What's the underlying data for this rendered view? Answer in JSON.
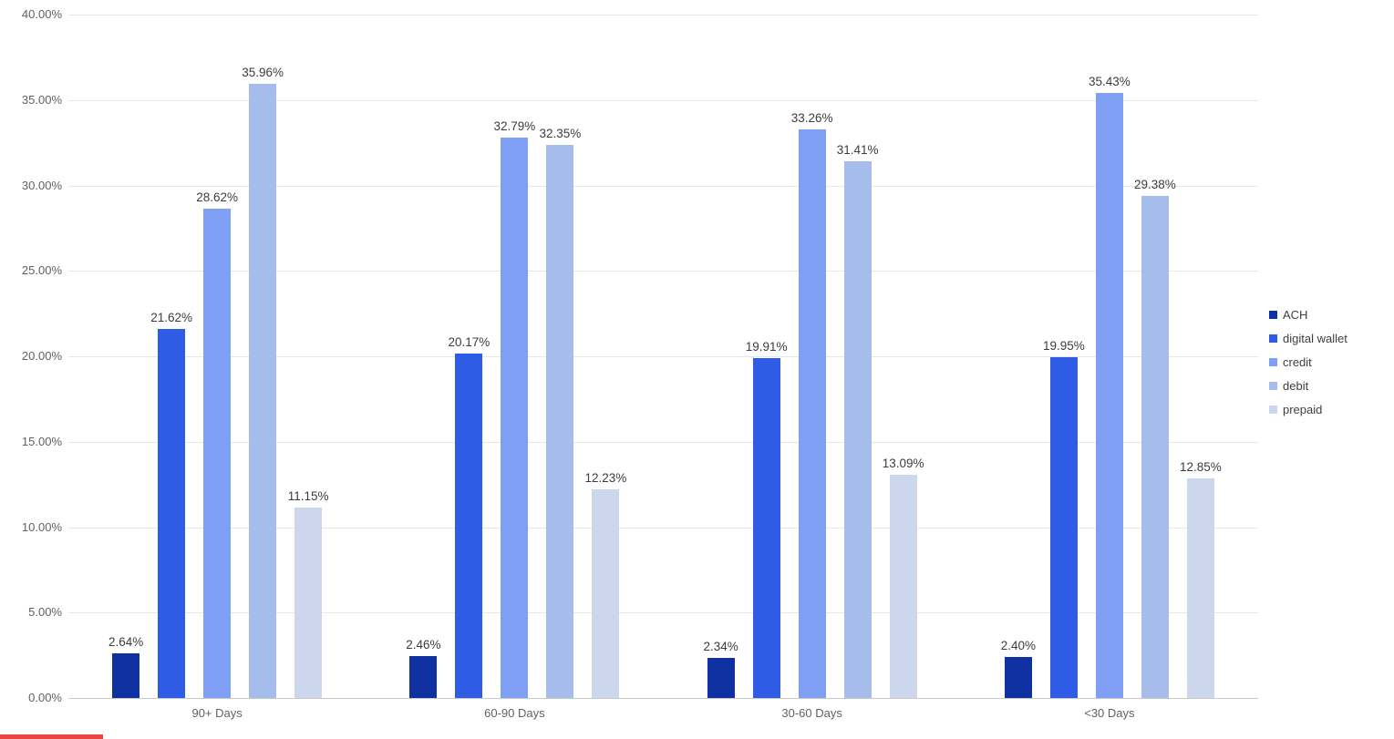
{
  "chart_data": {
    "type": "bar",
    "title": "",
    "xlabel": "",
    "ylabel": "",
    "categories": [
      "90+ Days",
      "60-90 Days",
      "30-60 Days",
      "<30 Days"
    ],
    "series": [
      {
        "name": "ACH",
        "color": "#0e30a0",
        "values": [
          2.64,
          2.46,
          2.34,
          2.4
        ],
        "labels": [
          "2.64%",
          "2.46%",
          "2.34%",
          "2.40%"
        ]
      },
      {
        "name": "digital wallet",
        "color": "#2f5ce4",
        "values": [
          21.62,
          20.17,
          19.91,
          19.95
        ],
        "labels": [
          "21.62%",
          "20.17%",
          "19.91%",
          "19.95%"
        ]
      },
      {
        "name": "credit",
        "color": "#7f9ff5",
        "values": [
          28.62,
          32.79,
          33.26,
          35.43
        ],
        "labels": [
          "28.62%",
          "32.79%",
          "33.26%",
          "35.43%"
        ]
      },
      {
        "name": "debit",
        "color": "#a6bdec",
        "values": [
          35.96,
          32.35,
          31.41,
          29.38
        ],
        "labels": [
          "35.96%",
          "32.35%",
          "31.41%",
          "29.38%"
        ]
      },
      {
        "name": "prepaid",
        "color": "#ccd6ec",
        "values": [
          11.15,
          12.23,
          13.09,
          12.85
        ],
        "labels": [
          "11.15%",
          "12.23%",
          "13.09%",
          "12.85%"
        ]
      }
    ],
    "ylim": [
      0,
      40
    ],
    "ytick_step": 5,
    "ytick_labels": [
      "0.00%",
      "5.00%",
      "10.00%",
      "15.00%",
      "20.00%",
      "25.00%",
      "30.00%",
      "35.00%",
      "40.00%"
    ],
    "grid": true,
    "legend_position": "right",
    "legend": [
      "ACH",
      "digital wallet",
      "credit",
      "debit",
      "prepaid"
    ]
  },
  "decor": {
    "red_strip_color": "#e8453c"
  }
}
